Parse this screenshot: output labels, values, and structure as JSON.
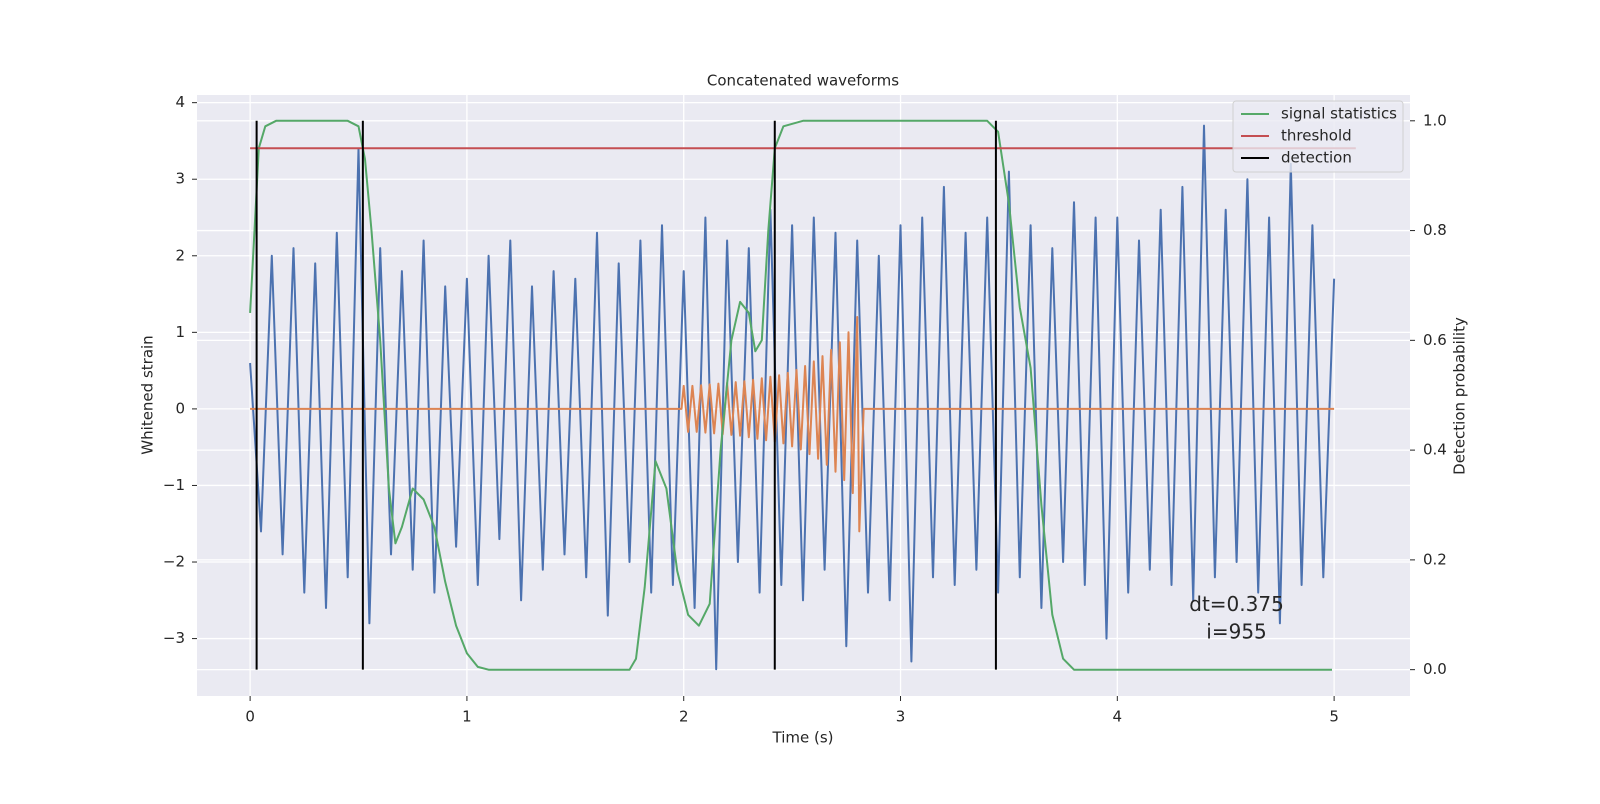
{
  "chart_data": {
    "type": "line",
    "title": "Concatenated waveforms",
    "xlabel": "Time (s)",
    "ylabel": "Whitened strain",
    "y2label": "Detection probability",
    "xlim": [
      -0.245,
      5.35
    ],
    "ylim": [
      -3.75,
      4.1
    ],
    "y2lim": [
      -0.048,
      1.047
    ],
    "xticks": [
      0,
      1,
      2,
      3,
      4,
      5
    ],
    "yticks": [
      {
        "value": -3,
        "label": "−3"
      },
      {
        "value": -2,
        "label": "−2"
      },
      {
        "value": -1,
        "label": "−1"
      },
      0,
      1,
      2,
      3,
      4
    ],
    "y2ticks": [
      {
        "value": 0,
        "label": "0.0"
      },
      0.2,
      0.4,
      0.6,
      0.8,
      {
        "value": 1,
        "label": "1.0"
      }
    ],
    "grid": true,
    "legend": "upper right",
    "series": [
      {
        "color": "#4c72b0",
        "x": [
          0,
          0.05,
          0.1,
          0.15,
          0.2,
          0.25,
          0.3,
          0.35,
          0.4,
          0.45,
          0.5,
          0.55,
          0.6,
          0.65,
          0.7,
          0.75,
          0.8,
          0.85,
          0.9,
          0.95,
          1,
          1.05,
          1.1,
          1.15,
          1.2,
          1.25,
          1.3,
          1.35,
          1.4,
          1.45,
          1.5,
          1.55,
          1.6,
          1.65,
          1.7,
          1.75,
          1.8,
          1.85,
          1.9,
          1.95,
          2,
          2.05,
          2.1,
          2.15,
          2.2,
          2.25,
          2.3,
          2.35,
          2.4,
          2.45,
          2.5,
          2.55,
          2.6,
          2.65,
          2.7,
          2.75,
          2.8,
          2.85,
          2.9,
          2.95,
          3,
          3.05,
          3.1,
          3.15,
          3.2,
          3.25,
          3.3,
          3.35,
          3.4,
          3.45,
          3.5,
          3.55,
          3.6,
          3.65,
          3.7,
          3.75,
          3.8,
          3.85,
          3.9,
          3.95,
          4,
          4.05,
          4.1,
          4.15,
          4.2,
          4.25,
          4.3,
          4.35,
          4.4,
          4.45,
          4.5,
          4.55,
          4.6,
          4.65,
          4.7,
          4.75,
          4.8,
          4.85,
          4.9,
          4.95,
          5
        ],
        "values": [
          0.6,
          -1.6,
          2.0,
          -1.9,
          2.1,
          -2.4,
          1.9,
          -2.6,
          2.3,
          -2.2,
          3.4,
          -2.8,
          2.1,
          -1.9,
          1.8,
          -2.1,
          2.2,
          -2.4,
          1.6,
          -1.8,
          1.7,
          -2.3,
          2.0,
          -1.7,
          2.2,
          -2.5,
          1.6,
          -2.1,
          1.8,
          -1.9,
          1.7,
          -2.2,
          2.3,
          -2.7,
          1.9,
          -2.0,
          2.2,
          -2.4,
          2.4,
          -2.3,
          1.8,
          -2.6,
          2.5,
          -3.4,
          2.2,
          -2.0,
          2.1,
          -2.4,
          2.6,
          -2.3,
          2.4,
          -2.5,
          2.5,
          -2.1,
          2.3,
          -3.1,
          2.2,
          -2.4,
          2.0,
          -2.5,
          2.4,
          -3.3,
          2.5,
          -2.2,
          2.9,
          -2.3,
          2.3,
          -2.1,
          2.5,
          -2.4,
          3.1,
          -2.2,
          2.4,
          -2.6,
          2.1,
          -2.0,
          2.7,
          -2.3,
          2.5,
          -3.0,
          2.5,
          -2.4,
          2.2,
          -2.1,
          2.6,
          -2.3,
          2.9,
          -2.5,
          3.7,
          -2.2,
          2.6,
          -2.0,
          3.0,
          -2.4,
          2.5,
          -2.8,
          3.2,
          -2.3,
          2.4,
          -2.2,
          1.7
        ]
      },
      {
        "color": "#dd8452",
        "x": [
          0,
          1.99,
          2,
          2.02,
          2.04,
          2.06,
          2.08,
          2.1,
          2.12,
          2.14,
          2.16,
          2.18,
          2.2,
          2.22,
          2.24,
          2.26,
          2.28,
          2.3,
          2.32,
          2.34,
          2.36,
          2.38,
          2.4,
          2.42,
          2.44,
          2.46,
          2.48,
          2.5,
          2.52,
          2.54,
          2.56,
          2.58,
          2.6,
          2.62,
          2.64,
          2.66,
          2.68,
          2.7,
          2.72,
          2.74,
          2.76,
          2.78,
          2.8,
          2.81,
          2.83,
          5
        ],
        "values": [
          0,
          0,
          0.3,
          -0.3,
          0.3,
          -0.3,
          0.31,
          -0.31,
          0.32,
          -0.32,
          0.33,
          -0.33,
          0.34,
          -0.34,
          0.35,
          -0.35,
          0.36,
          -0.37,
          0.38,
          -0.39,
          0.4,
          -0.41,
          0.42,
          -0.43,
          0.44,
          -0.45,
          0.47,
          -0.49,
          0.51,
          -0.53,
          0.56,
          -0.59,
          0.62,
          -0.65,
          0.69,
          -0.73,
          0.77,
          -0.82,
          0.87,
          -0.93,
          1.0,
          -1.1,
          1.2,
          -1.6,
          0,
          0
        ]
      },
      {
        "name": "signal statistics",
        "color": "#55a868",
        "axis": "y2",
        "x": [
          0,
          0.02,
          0.04,
          0.07,
          0.12,
          0.3,
          0.45,
          0.5,
          0.53,
          0.56,
          0.6,
          0.64,
          0.67,
          0.7,
          0.75,
          0.8,
          0.85,
          0.9,
          0.95,
          1.0,
          1.05,
          1.1,
          1.5,
          1.75,
          1.78,
          1.82,
          1.87,
          1.92,
          1.97,
          2.02,
          2.07,
          2.12,
          2.17,
          2.22,
          2.26,
          2.3,
          2.33,
          2.36,
          2.39,
          2.42,
          2.46,
          2.55,
          3.0,
          3.4,
          3.45,
          3.5,
          3.55,
          3.6,
          3.65,
          3.7,
          3.75,
          3.8,
          4.5,
          4.99
        ],
        "values": [
          0.65,
          0.8,
          0.95,
          0.99,
          1.0,
          1.0,
          1.0,
          0.99,
          0.93,
          0.8,
          0.6,
          0.33,
          0.23,
          0.26,
          0.33,
          0.31,
          0.26,
          0.16,
          0.08,
          0.03,
          0.005,
          0,
          0,
          0,
          0.02,
          0.15,
          0.38,
          0.33,
          0.18,
          0.1,
          0.08,
          0.12,
          0.4,
          0.6,
          0.67,
          0.65,
          0.58,
          0.6,
          0.8,
          0.95,
          0.99,
          1.0,
          1.0,
          1.0,
          0.98,
          0.85,
          0.66,
          0.55,
          0.3,
          0.1,
          0.02,
          0,
          0,
          0
        ]
      },
      {
        "name": "threshold",
        "color": "#c44e52",
        "axis": "y2",
        "x": [
          0,
          5.1
        ],
        "values": [
          0.95,
          0.95
        ]
      },
      {
        "name": "detection",
        "color": "#000000",
        "axis": "y2",
        "kind": "vlines",
        "x": [
          0.03,
          0.52,
          2.42,
          3.44
        ],
        "ymin": 0,
        "ymax": 1
      }
    ],
    "annotations": [
      {
        "text": "dt=0.375",
        "x": 4.55,
        "y": -2.57
      },
      {
        "text": "i=955",
        "x": 4.55,
        "y": -2.93
      }
    ]
  }
}
